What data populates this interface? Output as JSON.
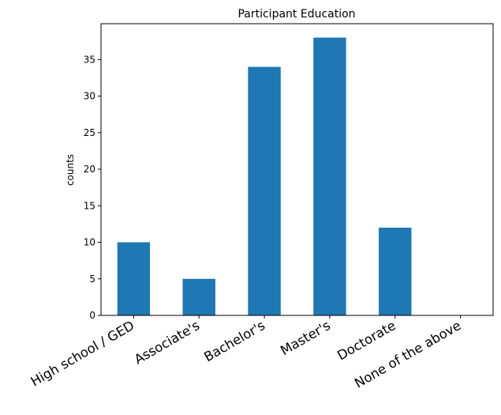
{
  "chart_data": {
    "type": "bar",
    "title": "Participant Education",
    "xlabel": "",
    "ylabel": "counts",
    "categories": [
      "High school / GED",
      "Associate's",
      "Bachelor's",
      "Master's",
      "Doctorate",
      "None of the above"
    ],
    "values": [
      10,
      5,
      34,
      38,
      12,
      0
    ],
    "ylim": [
      0,
      39.9
    ],
    "yticks": [
      0,
      5,
      10,
      15,
      20,
      25,
      30,
      35
    ],
    "bar_color": "#1f77b4",
    "grid": false,
    "legend": "none"
  }
}
